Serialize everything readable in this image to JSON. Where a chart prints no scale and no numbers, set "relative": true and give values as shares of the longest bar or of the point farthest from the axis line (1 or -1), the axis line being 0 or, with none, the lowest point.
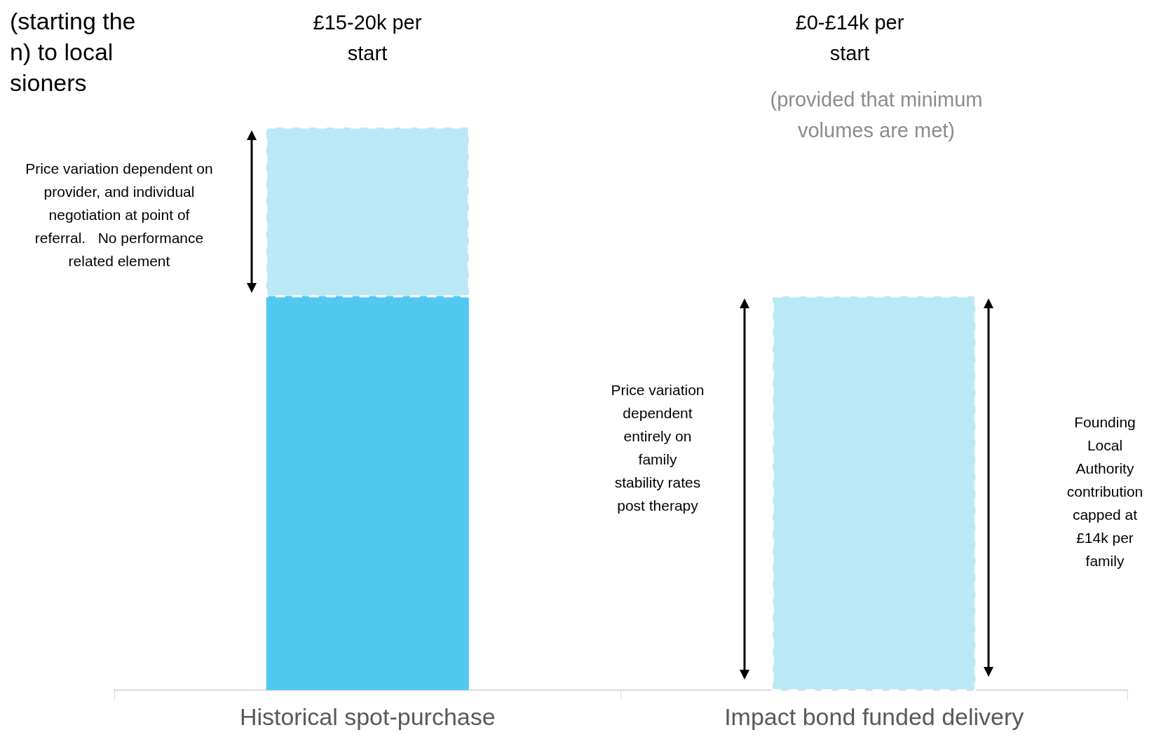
{
  "chart_data": {
    "type": "bar",
    "relative": true,
    "stacked": true,
    "title": "(starting the\nn) to local\nsioners",
    "categories": [
      "Historical spot-purchase",
      "Impact bond funded delivery"
    ],
    "series": [
      {
        "color": "#50c8f0",
        "values": [
          0.7,
          null
        ]
      },
      {
        "color": "#bae8f7",
        "values": [
          0.3,
          0.7
        ],
        "line_style": "dashed"
      }
    ],
    "grid": false,
    "legend": false,
    "annotations": [
      "£15-20k per\nstart",
      "£0-£14k per\nstart",
      "(provided that minimum\nvolumes are met)",
      "Price variation dependent on\nprovider, and individual\nnegotiation at point of\nreferral.   No performance\nrelated element",
      "Price variation\ndependent\nentirely on\nfamily\nstability rates\npost therapy",
      "Founding\nLocal\nAuthority\ncontribution\ncapped at\n£14k per\nfamily"
    ]
  }
}
